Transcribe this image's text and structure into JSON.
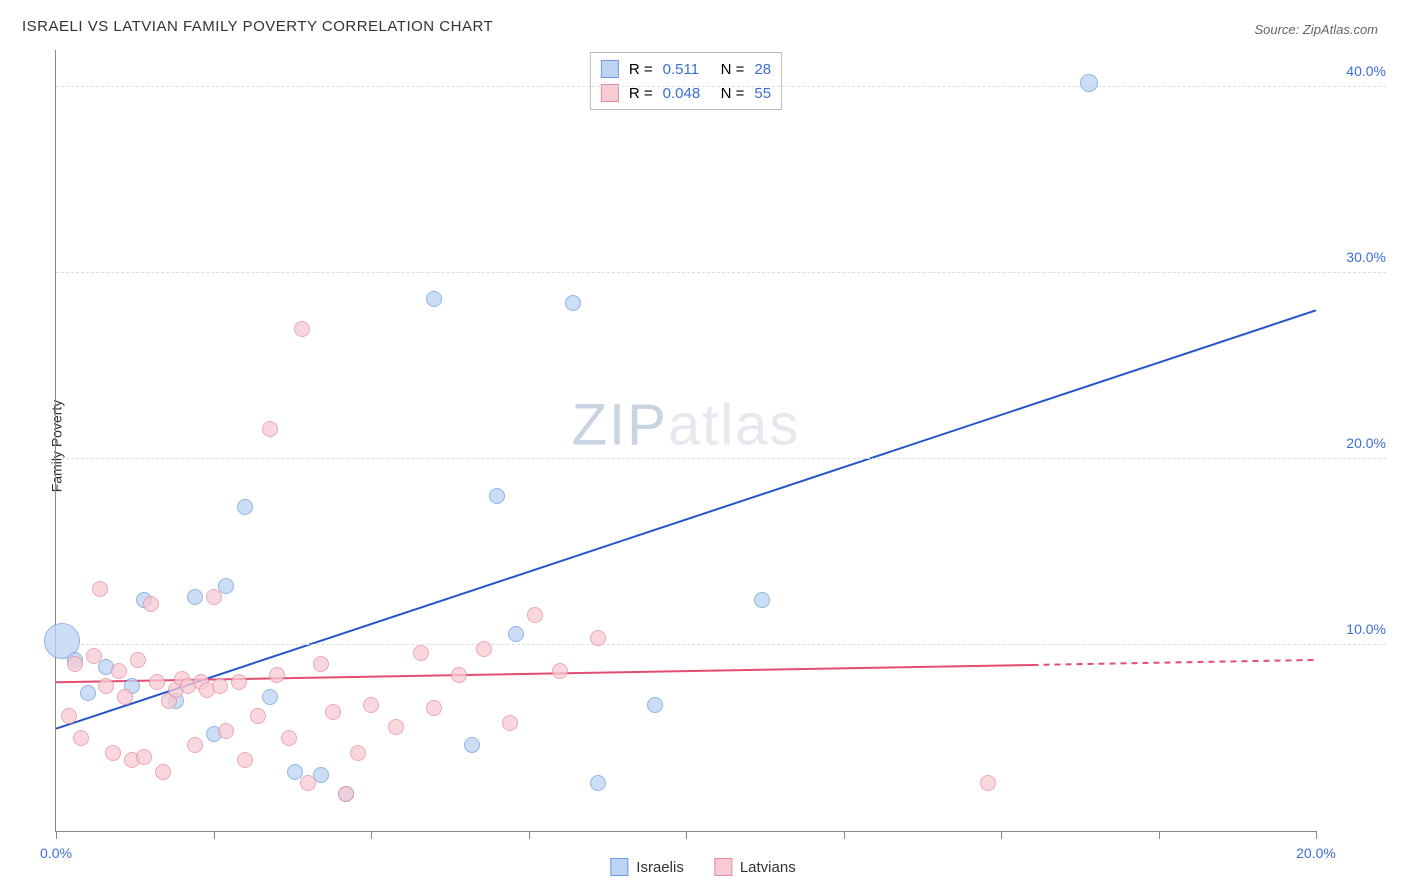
{
  "title": "ISRAELI VS LATVIAN FAMILY POVERTY CORRELATION CHART",
  "source_label": "Source: ZipAtlas.com",
  "y_axis_title": "Family Poverty",
  "watermark": {
    "part1": "ZIP",
    "part2": "atlas"
  },
  "chart": {
    "type": "scatter",
    "background_color": "#ffffff",
    "grid_color": "#dddddd",
    "axis_color": "#888888",
    "x_range": [
      0,
      20
    ],
    "y_range": [
      0,
      42
    ],
    "x_ticks": [
      0,
      2.5,
      5,
      7.5,
      10,
      12.5,
      15,
      17.5,
      20
    ],
    "x_tick_labels": {
      "0": "0.0%",
      "20": "20.0%"
    },
    "y_ticks": [
      10,
      20,
      30,
      40
    ],
    "y_tick_labels": {
      "10": "10.0%",
      "20": "20.0%",
      "30": "30.0%",
      "40": "40.0%"
    },
    "tick_label_color": "#3b6fd6",
    "tick_label_fontsize": 14,
    "series": [
      {
        "name": "Israelis",
        "color_fill": "#bcd3f2",
        "color_stroke": "#6d9de0",
        "r_value": "0.511",
        "n_value": "28",
        "trend": {
          "x1": 0,
          "y1": 5.5,
          "x2": 20,
          "y2": 28.0,
          "color": "#2456c9",
          "width": 2,
          "dash_after_x": null
        },
        "points": [
          {
            "x": 0.1,
            "y": 10.2,
            "r": 18
          },
          {
            "x": 0.3,
            "y": 9.2,
            "r": 8
          },
          {
            "x": 0.5,
            "y": 7.4,
            "r": 8
          },
          {
            "x": 0.8,
            "y": 8.8,
            "r": 8
          },
          {
            "x": 1.2,
            "y": 7.8,
            "r": 8
          },
          {
            "x": 1.4,
            "y": 12.4,
            "r": 8
          },
          {
            "x": 1.9,
            "y": 7.0,
            "r": 8
          },
          {
            "x": 2.2,
            "y": 12.6,
            "r": 8
          },
          {
            "x": 2.5,
            "y": 5.2,
            "r": 8
          },
          {
            "x": 2.7,
            "y": 13.2,
            "r": 8
          },
          {
            "x": 3.0,
            "y": 17.4,
            "r": 8
          },
          {
            "x": 3.4,
            "y": 7.2,
            "r": 8
          },
          {
            "x": 3.8,
            "y": 3.2,
            "r": 8
          },
          {
            "x": 4.2,
            "y": 3.0,
            "r": 8
          },
          {
            "x": 4.6,
            "y": 2.0,
            "r": 8
          },
          {
            "x": 6.0,
            "y": 28.6,
            "r": 8
          },
          {
            "x": 6.6,
            "y": 4.6,
            "r": 8
          },
          {
            "x": 7.0,
            "y": 18.0,
            "r": 8
          },
          {
            "x": 7.3,
            "y": 10.6,
            "r": 8
          },
          {
            "x": 8.2,
            "y": 28.4,
            "r": 8
          },
          {
            "x": 8.6,
            "y": 2.6,
            "r": 8
          },
          {
            "x": 9.5,
            "y": 6.8,
            "r": 8
          },
          {
            "x": 11.2,
            "y": 12.4,
            "r": 8
          },
          {
            "x": 16.4,
            "y": 40.2,
            "r": 9
          }
        ]
      },
      {
        "name": "Latvians",
        "color_fill": "#f6cbd4",
        "color_stroke": "#e88ba0",
        "r_value": "0.048",
        "n_value": "55",
        "trend": {
          "x1": 0,
          "y1": 8.0,
          "x2": 20,
          "y2": 9.2,
          "color": "#e34d73",
          "width": 2,
          "dash_after_x": 15.5
        },
        "points": [
          {
            "x": 0.2,
            "y": 6.2,
            "r": 8
          },
          {
            "x": 0.3,
            "y": 9.0,
            "r": 8
          },
          {
            "x": 0.4,
            "y": 5.0,
            "r": 8
          },
          {
            "x": 0.6,
            "y": 9.4,
            "r": 8
          },
          {
            "x": 0.7,
            "y": 13.0,
            "r": 8
          },
          {
            "x": 0.8,
            "y": 7.8,
            "r": 8
          },
          {
            "x": 0.9,
            "y": 4.2,
            "r": 8
          },
          {
            "x": 1.0,
            "y": 8.6,
            "r": 8
          },
          {
            "x": 1.1,
            "y": 7.2,
            "r": 8
          },
          {
            "x": 1.2,
            "y": 3.8,
            "r": 8
          },
          {
            "x": 1.3,
            "y": 9.2,
            "r": 8
          },
          {
            "x": 1.4,
            "y": 4.0,
            "r": 8
          },
          {
            "x": 1.5,
            "y": 12.2,
            "r": 8
          },
          {
            "x": 1.6,
            "y": 8.0,
            "r": 8
          },
          {
            "x": 1.7,
            "y": 3.2,
            "r": 8
          },
          {
            "x": 1.8,
            "y": 7.0,
            "r": 8
          },
          {
            "x": 1.9,
            "y": 7.6,
            "r": 8
          },
          {
            "x": 2.0,
            "y": 8.2,
            "r": 8
          },
          {
            "x": 2.1,
            "y": 7.8,
            "r": 8
          },
          {
            "x": 2.2,
            "y": 4.6,
            "r": 8
          },
          {
            "x": 2.3,
            "y": 8.0,
            "r": 8
          },
          {
            "x": 2.4,
            "y": 7.6,
            "r": 8
          },
          {
            "x": 2.5,
            "y": 12.6,
            "r": 8
          },
          {
            "x": 2.6,
            "y": 7.8,
            "r": 8
          },
          {
            "x": 2.7,
            "y": 5.4,
            "r": 8
          },
          {
            "x": 2.9,
            "y": 8.0,
            "r": 8
          },
          {
            "x": 3.0,
            "y": 3.8,
            "r": 8
          },
          {
            "x": 3.2,
            "y": 6.2,
            "r": 8
          },
          {
            "x": 3.4,
            "y": 21.6,
            "r": 8
          },
          {
            "x": 3.5,
            "y": 8.4,
            "r": 8
          },
          {
            "x": 3.7,
            "y": 5.0,
            "r": 8
          },
          {
            "x": 3.9,
            "y": 27.0,
            "r": 8
          },
          {
            "x": 4.0,
            "y": 2.6,
            "r": 8
          },
          {
            "x": 4.2,
            "y": 9.0,
            "r": 8
          },
          {
            "x": 4.4,
            "y": 6.4,
            "r": 8
          },
          {
            "x": 4.6,
            "y": 2.0,
            "r": 8
          },
          {
            "x": 4.8,
            "y": 4.2,
            "r": 8
          },
          {
            "x": 5.0,
            "y": 6.8,
            "r": 8
          },
          {
            "x": 5.4,
            "y": 5.6,
            "r": 8
          },
          {
            "x": 5.8,
            "y": 9.6,
            "r": 8
          },
          {
            "x": 6.0,
            "y": 6.6,
            "r": 8
          },
          {
            "x": 6.4,
            "y": 8.4,
            "r": 8
          },
          {
            "x": 6.8,
            "y": 9.8,
            "r": 8
          },
          {
            "x": 7.2,
            "y": 5.8,
            "r": 8
          },
          {
            "x": 7.6,
            "y": 11.6,
            "r": 8
          },
          {
            "x": 8.0,
            "y": 8.6,
            "r": 8
          },
          {
            "x": 8.6,
            "y": 10.4,
            "r": 8
          },
          {
            "x": 14.8,
            "y": 2.6,
            "r": 8
          }
        ]
      }
    ]
  },
  "r_legend": {
    "r_label": "R =",
    "n_label": "N =",
    "value_color": "#3b6fd6",
    "label_color": "#333333"
  },
  "bottom_legend": {
    "items": [
      {
        "label": "Israelis"
      },
      {
        "label": "Latvians"
      }
    ]
  }
}
